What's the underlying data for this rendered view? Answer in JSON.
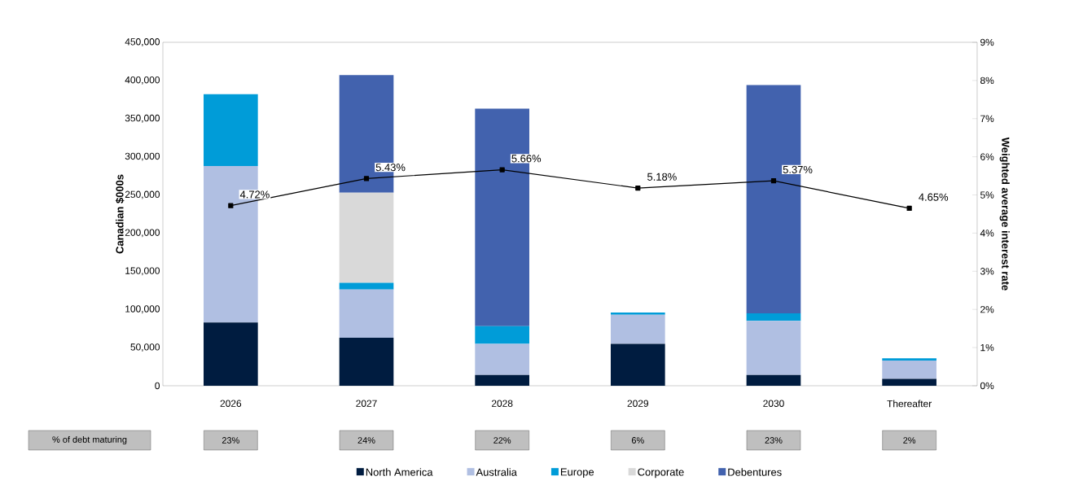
{
  "chart_data": {
    "type": "bar",
    "stacked": true,
    "legend": "bottom",
    "ylabel": "Canadian $000s",
    "y2label": "Weighted average interest rate",
    "categories": [
      "2026",
      "2027",
      "2028",
      "2029",
      "2030",
      "Thereafter"
    ],
    "series": [
      {
        "name": "North America",
        "color": "#001c40",
        "values": [
          83000,
          63000,
          14000,
          55000,
          14000,
          9000
        ]
      },
      {
        "name": "Australia",
        "color": "#b0bfe2",
        "values": [
          205000,
          63000,
          41000,
          38000,
          71000,
          24000
        ]
      },
      {
        "name": "Europe",
        "color": "#009cd8",
        "values": [
          94000,
          9000,
          23000,
          3000,
          10000,
          3000
        ]
      },
      {
        "name": "Corporate",
        "color": "#d9d9d9",
        "values": [
          0,
          118000,
          0,
          0,
          0,
          0
        ]
      },
      {
        "name": "Debentures",
        "color": "#4262ae",
        "values": [
          0,
          154000,
          285000,
          0,
          299000,
          0
        ]
      },
      {
        "type": "line",
        "axis": "y2",
        "color": "#000000",
        "marker": "square",
        "values": [
          4.72,
          5.43,
          5.66,
          5.18,
          5.37,
          4.65
        ],
        "value_labels": [
          "4.72%",
          "5.43%",
          "5.66%",
          "5.18%",
          "5.37%",
          "4.65%"
        ]
      }
    ],
    "ylim": [
      0,
      450000
    ],
    "yticks": [
      0,
      {
        "value": 50000,
        "label": "50,000"
      },
      {
        "value": 100000,
        "label": "100,000"
      },
      {
        "value": 150000,
        "label": "150,000"
      },
      {
        "value": 200000,
        "label": "200,000"
      },
      {
        "value": 250000,
        "label": "250,000"
      },
      {
        "value": 300000,
        "label": "300,000"
      },
      {
        "value": 350000,
        "label": "350,000"
      },
      {
        "value": 400000,
        "label": "400,000"
      },
      {
        "value": 450000,
        "label": "450,000"
      }
    ],
    "y2lim": [
      0,
      9
    ],
    "y2ticks": [
      {
        "value": 0,
        "label": "0%"
      },
      {
        "value": 1,
        "label": "1%"
      },
      {
        "value": 2,
        "label": "2%"
      },
      {
        "value": 3,
        "label": "3%"
      },
      {
        "value": 4,
        "label": "4%"
      },
      {
        "value": 5,
        "label": "5%"
      },
      {
        "value": 6,
        "label": "6%"
      },
      {
        "value": 7,
        "label": "7%"
      },
      {
        "value": 8,
        "label": "8%"
      },
      {
        "value": 9,
        "label": "9%"
      }
    ],
    "annotations": [
      "% of debt maturing",
      "23%",
      "24%",
      "22%",
      "6%",
      "23%",
      "2%"
    ]
  }
}
